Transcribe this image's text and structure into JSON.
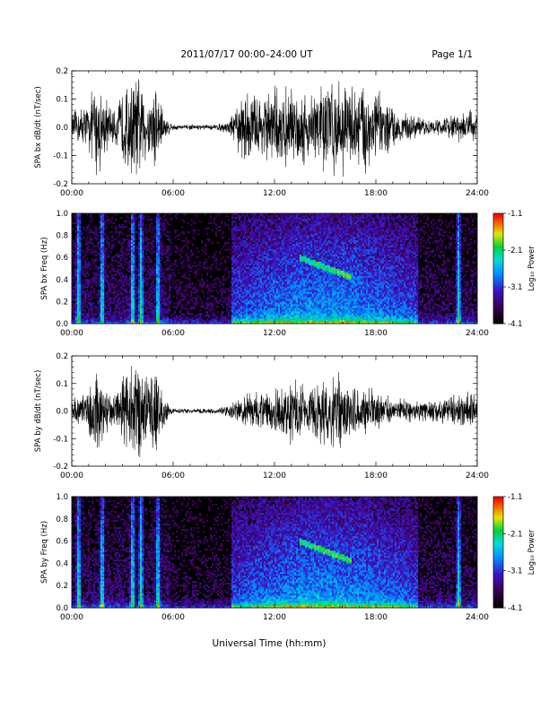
{
  "header": {
    "title": "2011/07/17  00:00–24:00 UT",
    "page": "Page 1/1"
  },
  "footer": {
    "xlabel": "Universal Time (hh:mm)"
  },
  "chart_data": [
    {
      "type": "line",
      "ylabel": "SPA bx dB/dt (nT/sec)",
      "xlim": [
        0,
        24
      ],
      "ylim": [
        -0.2,
        0.2
      ],
      "xticks": [
        "00:00",
        "06:00",
        "12:00",
        "18:00",
        "24:00"
      ],
      "yticks": [
        "-0.2",
        "-0.1",
        "0.0",
        "0.1",
        "0.2"
      ],
      "series": [
        {
          "color": "#000000",
          "envelope_hours": [
            0,
            0.5,
            1,
            1.5,
            2,
            2.5,
            3,
            3.5,
            4,
            4.5,
            5,
            5.5,
            6,
            6.5,
            7,
            7.5,
            8,
            8.5,
            9,
            9.5,
            10,
            10.5,
            11,
            11.5,
            12,
            12.5,
            13,
            13.5,
            14,
            14.5,
            15,
            15.5,
            16,
            16.5,
            17,
            17.5,
            18,
            18.5,
            19,
            19.5,
            20,
            20.5,
            21,
            21.5,
            22,
            22.5,
            23,
            23.5,
            24
          ],
          "envelope_amplitude": [
            0.06,
            0.08,
            0.1,
            0.2,
            0.12,
            0.06,
            0.15,
            0.2,
            0.2,
            0.12,
            0.2,
            0.05,
            0.012,
            0.01,
            0.01,
            0.01,
            0.01,
            0.012,
            0.02,
            0.05,
            0.12,
            0.15,
            0.13,
            0.14,
            0.16,
            0.15,
            0.16,
            0.15,
            0.14,
            0.17,
            0.19,
            0.2,
            0.18,
            0.17,
            0.18,
            0.2,
            0.16,
            0.12,
            0.08,
            0.06,
            0.05,
            0.04,
            0.03,
            0.03,
            0.04,
            0.05,
            0.06,
            0.07,
            0.06
          ]
        }
      ]
    },
    {
      "type": "heatmap",
      "ylabel": "SPA bx Freq (Hz)",
      "xlim": [
        0,
        24
      ],
      "ylim": [
        0,
        1.0
      ],
      "xticks": [
        "00:00",
        "06:00",
        "12:00",
        "18:00",
        "24:00"
      ],
      "yticks": [
        "0.0",
        "0.2",
        "0.4",
        "0.6",
        "0.8",
        "1.0"
      ],
      "colorbar": {
        "label": "Log₁₀ Power",
        "range": [
          -4.1,
          -1.1
        ],
        "ticks": [
          "-1.1",
          "-2.1",
          "-3.1",
          "-4.1"
        ]
      },
      "bursts_hours": [
        0.4,
        1.8,
        3.6,
        4.1,
        5.1,
        22.9
      ],
      "pc1_band": {
        "start_hour": 13.5,
        "end_hour": 16.6,
        "freq_start": 0.6,
        "freq_end": 0.42
      }
    },
    {
      "type": "line",
      "ylabel": "SPA by dB/dt (nT/sec)",
      "xlim": [
        0,
        24
      ],
      "ylim": [
        -0.2,
        0.2
      ],
      "xticks": [
        "00:00",
        "06:00",
        "12:00",
        "18:00",
        "24:00"
      ],
      "yticks": [
        "-0.2",
        "-0.1",
        "0.0",
        "0.1",
        "0.2"
      ],
      "series": [
        {
          "color": "#000000",
          "envelope_hours": [
            0,
            0.5,
            1,
            1.5,
            2,
            2.5,
            3,
            3.5,
            4,
            4.5,
            5,
            5.5,
            6,
            6.5,
            7,
            7.5,
            8,
            8.5,
            9,
            9.5,
            10,
            10.5,
            11,
            11.5,
            12,
            12.5,
            13,
            13.5,
            14,
            14.5,
            15,
            15.5,
            16,
            16.5,
            17,
            17.5,
            18,
            18.5,
            19,
            19.5,
            20,
            20.5,
            21,
            21.5,
            22,
            22.5,
            23,
            23.5,
            24
          ],
          "envelope_amplitude": [
            0.05,
            0.07,
            0.1,
            0.18,
            0.1,
            0.06,
            0.14,
            0.2,
            0.2,
            0.12,
            0.2,
            0.05,
            0.012,
            0.01,
            0.01,
            0.01,
            0.01,
            0.012,
            0.02,
            0.04,
            0.07,
            0.08,
            0.07,
            0.08,
            0.1,
            0.12,
            0.16,
            0.12,
            0.11,
            0.12,
            0.14,
            0.17,
            0.15,
            0.12,
            0.11,
            0.1,
            0.09,
            0.07,
            0.05,
            0.05,
            0.05,
            0.04,
            0.04,
            0.04,
            0.05,
            0.06,
            0.07,
            0.08,
            0.07
          ]
        }
      ]
    },
    {
      "type": "heatmap",
      "ylabel": "SPA by Freq (Hz)",
      "xlim": [
        0,
        24
      ],
      "ylim": [
        0,
        1.0
      ],
      "xticks": [
        "00:00",
        "06:00",
        "12:00",
        "18:00",
        "24:00"
      ],
      "yticks": [
        "0.0",
        "0.2",
        "0.4",
        "0.6",
        "0.8",
        "1.0"
      ],
      "colorbar": {
        "label": "Log₁₀ Power",
        "range": [
          -4.1,
          -1.1
        ],
        "ticks": [
          "-1.1",
          "-2.1",
          "-3.1",
          "-4.1"
        ]
      },
      "bursts_hours": [
        0.4,
        1.8,
        3.6,
        4.1,
        5.1,
        22.9
      ],
      "pc1_band": {
        "start_hour": 13.5,
        "end_hour": 16.6,
        "freq_start": 0.6,
        "freq_end": 0.42
      }
    }
  ]
}
